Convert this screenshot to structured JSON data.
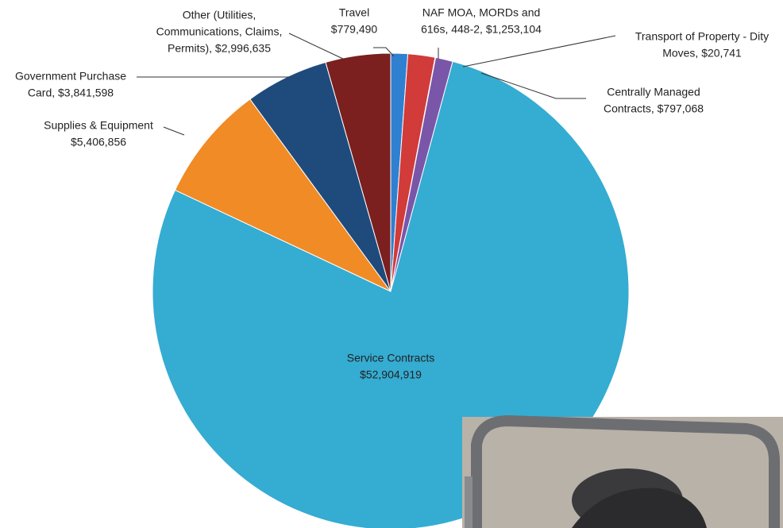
{
  "chart_data": {
    "type": "pie",
    "labels": [
      [
        "Travel",
        "$779,490"
      ],
      [
        "NAF MOA, MORDs and",
        "616s, 448-2, $1,253,104"
      ],
      [
        "Transport of Property - Dity",
        "Moves, $20,741"
      ],
      [
        "Centrally Managed",
        "Contracts, $797,068"
      ],
      [
        "Service Contracts",
        "$52,904,919"
      ],
      [
        "Supplies & Equipment",
        "$5,406,856"
      ],
      [
        "Government Purchase",
        "Card, $3,841,598"
      ],
      [
        "Other (Utilities,",
        "Communications, Claims,",
        "Permits), $2,996,635"
      ]
    ],
    "values": [
      779490,
      1253104,
      20741,
      797068,
      52904919,
      5406856,
      3841598,
      2996635
    ],
    "colors": [
      "#2f80d1",
      "#d13b39",
      "#e2a52a",
      "#7a56a9",
      "#35acd2",
      "#f08b25",
      "#1f4b7c",
      "#7b1f1f"
    ]
  }
}
